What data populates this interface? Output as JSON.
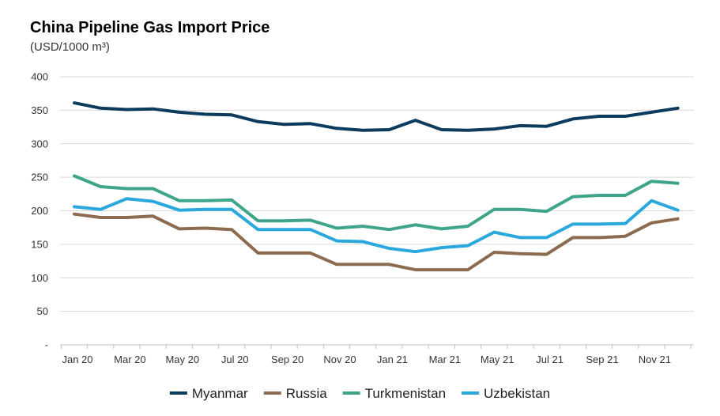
{
  "chart_data": {
    "type": "line",
    "title": "China Pipeline Gas Import Price",
    "subtitle": "(USD/1000 m³)",
    "xlabel": "",
    "ylabel": "",
    "ylim": [
      0,
      400
    ],
    "yticks": [
      0,
      50,
      100,
      150,
      200,
      250,
      300,
      350,
      400
    ],
    "ytick_labels": [
      "-",
      "50",
      "100",
      "150",
      "200",
      "250",
      "300",
      "350",
      "400"
    ],
    "x": [
      "Jan 20",
      "Feb 20",
      "Mar 20",
      "Apr 20",
      "May 20",
      "Jun 20",
      "Jul 20",
      "Aug 20",
      "Sep 20",
      "Oct 20",
      "Nov 20",
      "Dec 20",
      "Jan 21",
      "Feb 21",
      "Mar 21",
      "Apr 21",
      "May 21",
      "Jun 21",
      "Jul 21",
      "Aug 21",
      "Sep 21",
      "Oct 21",
      "Nov 21",
      "Dec 21"
    ],
    "xtick_labels": [
      "Jan 20",
      "Mar 20",
      "May 20",
      "Jul 20",
      "Sep 20",
      "Nov 20",
      "Jan 21",
      "Mar 21",
      "May 21",
      "Jul 21",
      "Sep 21",
      "Nov 21"
    ],
    "grid": true,
    "legend_position": "bottom",
    "series": [
      {
        "name": "Myanmar",
        "color": "#0d3b5e",
        "values": [
          361,
          353,
          351,
          352,
          347,
          344,
          343,
          333,
          329,
          330,
          323,
          320,
          321,
          335,
          321,
          320,
          322,
          327,
          326,
          337,
          341,
          341,
          347,
          353
        ]
      },
      {
        "name": "Russia",
        "color": "#8c6b4f",
        "values": [
          195,
          190,
          190,
          192,
          173,
          174,
          172,
          137,
          137,
          137,
          120,
          120,
          120,
          112,
          112,
          112,
          138,
          136,
          135,
          160,
          160,
          162,
          182,
          188
        ]
      },
      {
        "name": "Turkmenistan",
        "color": "#3fa58a",
        "values": [
          252,
          236,
          233,
          233,
          215,
          215,
          216,
          185,
          185,
          186,
          174,
          177,
          172,
          179,
          173,
          177,
          202,
          202,
          199,
          221,
          223,
          223,
          244,
          241
        ]
      },
      {
        "name": "Uzbekistan",
        "color": "#2aa8de",
        "values": [
          206,
          202,
          218,
          214,
          201,
          202,
          202,
          172,
          172,
          172,
          155,
          154,
          144,
          139,
          145,
          148,
          168,
          160,
          160,
          180,
          180,
          181,
          215,
          201
        ]
      }
    ]
  }
}
